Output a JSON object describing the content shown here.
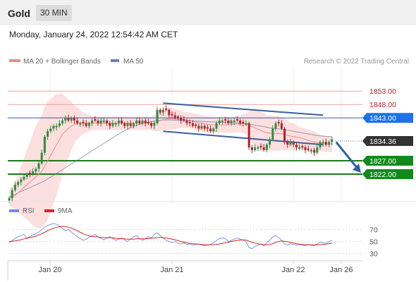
{
  "header": {
    "title": "Gold",
    "timeframe": "30 MIN",
    "datetime": "Monday, January 24, 2022 12:54:42 AM CET"
  },
  "colors": {
    "up": "#2e8b3e",
    "down": "#b3202a",
    "ma20": "#f28a8a",
    "bands": "#fbd9d9",
    "ma50": "#6b7fae",
    "channel": "#3b5e9e",
    "resistance_line": "#f2a0a0",
    "pivot_label": "#1a73e8",
    "support_label": "#118a1a",
    "support_line": "#1e7a1e",
    "price_label": "#333333",
    "rsi": "#6b8ee8",
    "rsi_ma": "#d92525",
    "arrow": "#2e5fa8"
  },
  "chart_data": [
    {
      "type": "candlestick",
      "legend": [
        "MA 20 + Bollinger Bands",
        "MA 50"
      ],
      "legend_placement": "top-left",
      "credit": "Research © 2022 Trading Central",
      "x_ticks": [
        "Jan 20",
        "Jan 21",
        "Jan 22",
        "Jan 26"
      ],
      "ylim": [
        1812,
        1862
      ],
      "levels": [
        {
          "value": 1853.0,
          "label": "1853.00",
          "kind": "resistance"
        },
        {
          "value": 1848.0,
          "label": "1848.00",
          "kind": "resistance"
        },
        {
          "value": 1843.0,
          "label": "1843.00",
          "kind": "pivot"
        },
        {
          "value": 1827.0,
          "label": "1827.00",
          "kind": "support"
        },
        {
          "value": 1822.0,
          "label": "1822.00",
          "kind": "support"
        }
      ],
      "last_price": {
        "value": 1834.36,
        "label": "1834.36"
      },
      "close": [
        1813,
        1816,
        1818,
        1819,
        1820,
        1821,
        1822,
        1822,
        1823,
        1824,
        1826,
        1830,
        1836,
        1838,
        1839,
        1840,
        1840,
        1841,
        1842,
        1843,
        1842,
        1843,
        1842,
        1841,
        1841,
        1841,
        1840,
        1841,
        1842,
        1842,
        1841,
        1842,
        1842,
        1841,
        1840,
        1841,
        1841,
        1842,
        1841,
        1840,
        1841,
        1840,
        1841,
        1842,
        1841,
        1842,
        1841,
        1841,
        1840,
        1841,
        1846,
        1845,
        1846,
        1846,
        1844,
        1844,
        1843,
        1843,
        1842,
        1842,
        1841,
        1841,
        1840,
        1840,
        1839,
        1840,
        1839,
        1839,
        1838,
        1839,
        1841,
        1842,
        1842,
        1842,
        1841,
        1842,
        1842,
        1842,
        1841,
        1841,
        1841,
        1832,
        1831,
        1832,
        1832,
        1832,
        1831,
        1833,
        1835,
        1839,
        1841,
        1841,
        1839,
        1834,
        1833,
        1834,
        1833,
        1832,
        1832,
        1832,
        1831,
        1831,
        1831,
        1830,
        1832,
        1834,
        1834,
        1833,
        1834,
        1835
      ],
      "ma20": [
        1813,
        1813.5,
        1814,
        1815,
        1816,
        1817,
        1818,
        1819,
        1820,
        1821,
        1822,
        1823,
        1825,
        1827,
        1829,
        1831,
        1833,
        1835,
        1837,
        1838,
        1839,
        1840,
        1840.5,
        1841,
        1841,
        1841,
        1841,
        1841,
        1841,
        1841,
        1841,
        1841,
        1841,
        1841,
        1841,
        1841,
        1841,
        1841,
        1841,
        1841,
        1841,
        1841,
        1841,
        1841,
        1841,
        1841,
        1841,
        1841,
        1841,
        1841,
        1841.5,
        1842,
        1842.3,
        1842.5,
        1842.6,
        1842.6,
        1842.6,
        1842.5,
        1842.4,
        1842.3,
        1842.2,
        1842,
        1841.8,
        1841.5,
        1841.3,
        1841,
        1840.8,
        1840.6,
        1840.5,
        1840.4,
        1840.4,
        1840.4,
        1840.4,
        1840.4,
        1840.4,
        1840.5,
        1840.6,
        1840.7,
        1840.8,
        1840.8,
        1840.8,
        1840.3,
        1839.8,
        1839.3,
        1838.8,
        1838.3,
        1837.8,
        1837.5,
        1837.3,
        1837.2,
        1837.2,
        1837.2,
        1837.1,
        1836.8,
        1836.5,
        1836.2,
        1836,
        1835.8,
        1835.6,
        1835.3,
        1835,
        1834.6,
        1834.3,
        1834,
        1833.8,
        1833.6,
        1833.4,
        1833.2,
        1833.2,
        1833.3
      ],
      "ma50": [
        1813.5,
        1814,
        1814.5,
        1815,
        1815.5,
        1816,
        1816.5,
        1817,
        1817.5,
        1818,
        1818.5,
        1819,
        1819.5,
        1820.2,
        1820.9,
        1821.6,
        1822.3,
        1823,
        1823.7,
        1824.4,
        1825.1,
        1825.8,
        1826.5,
        1827.2,
        1827.9,
        1828.6,
        1829.3,
        1830,
        1830.7,
        1831.4,
        1832.1,
        1832.8,
        1833.5,
        1834.2,
        1834.9,
        1835.6,
        1836.3,
        1837,
        1837.6,
        1838.2,
        1838.8,
        1839.3,
        1839.8,
        1840.2,
        1840.6,
        1840.9,
        1841.2,
        1841.4,
        1841.6,
        1841.8,
        1842,
        1842.1,
        1842.2,
        1842.2,
        1842.2,
        1842.2,
        1842.1,
        1842.1,
        1842,
        1842,
        1841.9,
        1841.9,
        1841.8,
        1841.8,
        1841.7,
        1841.7,
        1841.6,
        1841.6,
        1841.5,
        1841.5,
        1841.4,
        1841.4,
        1841.3,
        1841.3,
        1841.2,
        1841.2,
        1841.1,
        1841.1,
        1841,
        1841,
        1840.9,
        1840.7,
        1840.5,
        1840.3,
        1840.1,
        1839.9,
        1839.7,
        1839.5,
        1839.3,
        1839.1,
        1839,
        1838.9,
        1838.8,
        1838.6,
        1838.4,
        1838.2,
        1838,
        1837.8,
        1837.6,
        1837.4,
        1837.2,
        1837,
        1836.8,
        1836.6,
        1836.4,
        1836.3,
        1836.2,
        1836.1,
        1836,
        1836
      ],
      "band_width": [
        3,
        4,
        5,
        7,
        9,
        11,
        13,
        15,
        17,
        19,
        20,
        21,
        22,
        22,
        21,
        20,
        19,
        17,
        15,
        13,
        11,
        9,
        7,
        6,
        5,
        4,
        3.5,
        3,
        2.5,
        2.5,
        2.5,
        2.5,
        2.5,
        2.5,
        2.5,
        2.5,
        2.5,
        2.5,
        2.5,
        2.5,
        2.5,
        2.5,
        2.5,
        2.5,
        2.5,
        2.5,
        2.5,
        2.5,
        2.5,
        3,
        3.5,
        3.8,
        4,
        4,
        4,
        4,
        3.8,
        3.5,
        3.3,
        3,
        3,
        3,
        3,
        3,
        3,
        3,
        3,
        3,
        3,
        3,
        3,
        3,
        3,
        3,
        3,
        3,
        3,
        3,
        3,
        3.5,
        4,
        5,
        6,
        6.5,
        7,
        7,
        7,
        6.5,
        6.5,
        6.5,
        6.5,
        6.5,
        6,
        6,
        5.5,
        5,
        5,
        4.5,
        4,
        4,
        4,
        4,
        4,
        4,
        3.5,
        3,
        3,
        3,
        3,
        3
      ],
      "channel": {
        "upper": [
          [
            52,
            1848.5
          ],
          [
            106,
            1844
          ]
        ],
        "lower": [
          [
            52,
            1838
          ],
          [
            106,
            1833
          ]
        ]
      }
    },
    {
      "type": "line",
      "legend": [
        "RSI",
        "9MA"
      ],
      "ylim": [
        20,
        85
      ],
      "y_ticks": [
        70,
        50,
        30
      ],
      "rsi": [
        48,
        52,
        55,
        58,
        60,
        62,
        55,
        58,
        61,
        63,
        66,
        70,
        74,
        77,
        79,
        80,
        79,
        76,
        72,
        68,
        70,
        66,
        62,
        58,
        55,
        52,
        54,
        57,
        60,
        62,
        58,
        55,
        53,
        56,
        58,
        55,
        52,
        54,
        56,
        53,
        50,
        54,
        58,
        60,
        55,
        52,
        55,
        58,
        56,
        62,
        65,
        60,
        56,
        52,
        50,
        48,
        50,
        47,
        46,
        48,
        45,
        46,
        44,
        45,
        46,
        44,
        43,
        44,
        45,
        48,
        52,
        55,
        56,
        55,
        50,
        52,
        54,
        56,
        54,
        52,
        50,
        40,
        38,
        42,
        44,
        46,
        43,
        48,
        52,
        58,
        60,
        57,
        52,
        46,
        44,
        46,
        45,
        44,
        45,
        44,
        43,
        45,
        44,
        43,
        46,
        49,
        48,
        47,
        50,
        52
      ],
      "rsi_ma": [
        50,
        50.5,
        51,
        52,
        53,
        54.5,
        55.5,
        56.5,
        57.5,
        59,
        61,
        63,
        65.5,
        68,
        70.5,
        72.5,
        74,
        75,
        75.5,
        75,
        74,
        72.5,
        70.5,
        68,
        65.5,
        63,
        61,
        59.5,
        58.5,
        58,
        57.5,
        57,
        56.5,
        56.5,
        56.5,
        56,
        55.5,
        55,
        55,
        54.5,
        54,
        54,
        54,
        54.5,
        54.5,
        54.5,
        54.5,
        55,
        55.5,
        56,
        56.5,
        57,
        56.5,
        56,
        55,
        54,
        53,
        51.5,
        50,
        49,
        48,
        47,
        46.5,
        46,
        45.5,
        45,
        44.8,
        44.6,
        44.6,
        44.8,
        45.3,
        46,
        47,
        48,
        49,
        50,
        51,
        52,
        52.5,
        53,
        52.5,
        50.5,
        49,
        47.5,
        46.5,
        45.5,
        44.5,
        44.5,
        45,
        46.5,
        48.5,
        50,
        51,
        50.5,
        49.5,
        48.5,
        47.5,
        46.5,
        45.5,
        45,
        44.8,
        44.6,
        44.5,
        44.3,
        44.4,
        44.8,
        45.3,
        45.8,
        46.5,
        47.5
      ]
    }
  ]
}
